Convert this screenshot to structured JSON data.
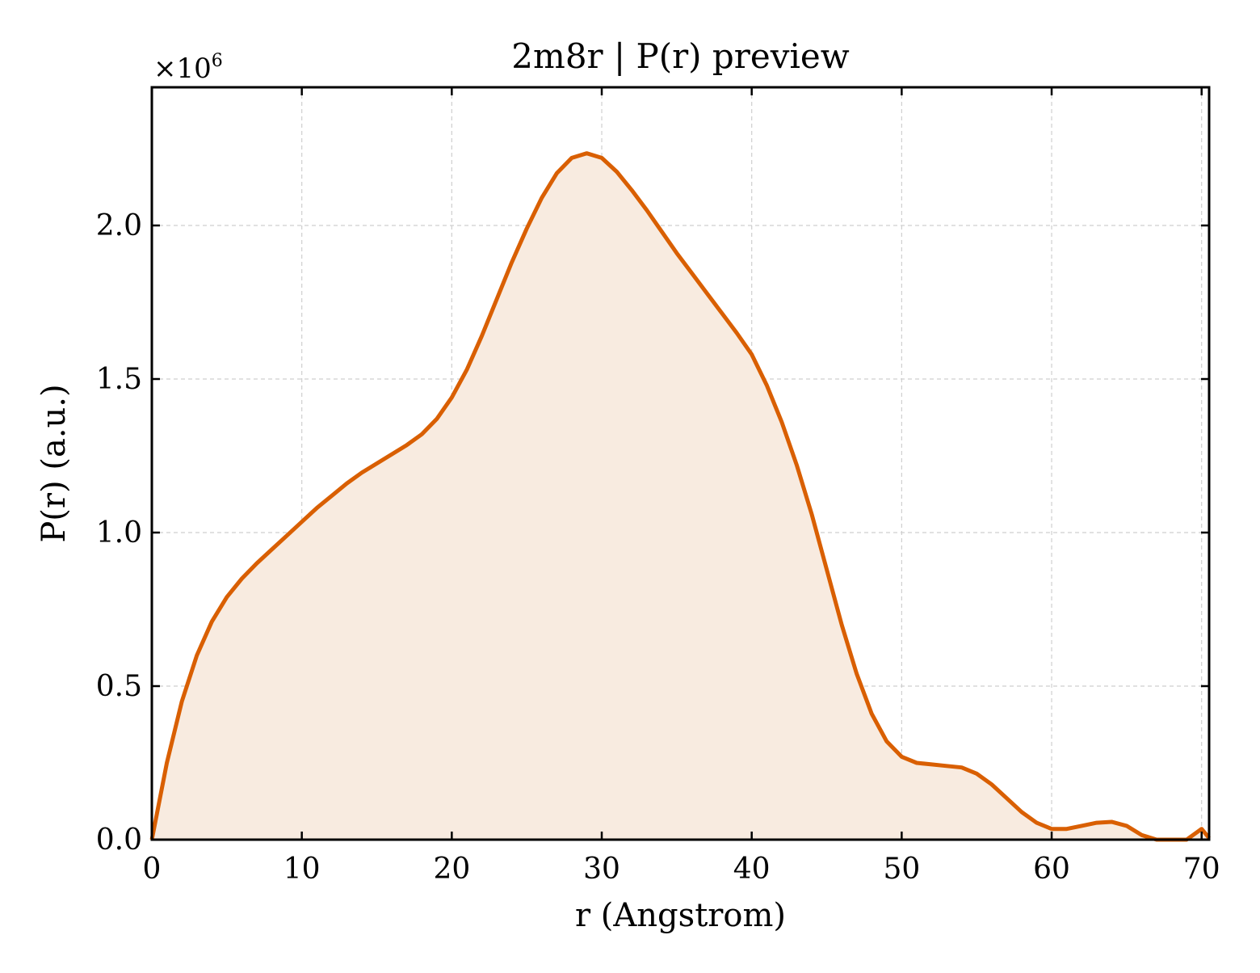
{
  "chart_data": {
    "type": "area",
    "title": "2m8r | P(r) preview",
    "xlabel": "r (Angstrom)",
    "ylabel": "P(r) (a.u.)",
    "y_multiplier_label": "×10",
    "y_multiplier_exponent": "6",
    "xlim": [
      0,
      70.5
    ],
    "ylim": [
      0,
      2.45
    ],
    "xticks": [
      0,
      10,
      20,
      30,
      40,
      50,
      60,
      70
    ],
    "xtick_labels": [
      "0",
      "10",
      "20",
      "30",
      "40",
      "50",
      "60",
      "70"
    ],
    "yticks": [
      0,
      0.5,
      1.0,
      1.5,
      2.0
    ],
    "ytick_labels": [
      "0.0",
      "0.5",
      "1.0",
      "1.5",
      "2.0"
    ],
    "grid": true,
    "line_color": "#d95f02",
    "fill_color": "#f8ebe0",
    "series": [
      {
        "x": [
          0,
          1,
          2,
          3,
          4,
          5,
          6,
          7,
          8,
          9,
          10,
          11,
          12,
          13,
          14,
          15,
          16,
          17,
          18,
          19,
          20,
          21,
          22,
          23,
          24,
          25,
          26,
          27,
          28,
          29,
          30,
          31,
          32,
          33,
          34,
          35,
          36,
          37,
          38,
          39,
          40,
          41,
          42,
          43,
          44,
          45,
          46,
          47,
          48,
          49,
          50,
          51,
          52,
          53,
          54,
          55,
          56,
          57,
          58,
          59,
          60,
          61,
          62,
          63,
          64,
          65,
          66,
          67,
          68,
          69,
          70,
          70.5
        ],
        "y": [
          0.0,
          0.25,
          0.45,
          0.6,
          0.71,
          0.79,
          0.85,
          0.9,
          0.945,
          0.99,
          1.035,
          1.08,
          1.12,
          1.16,
          1.195,
          1.225,
          1.255,
          1.285,
          1.32,
          1.37,
          1.44,
          1.53,
          1.64,
          1.76,
          1.88,
          1.99,
          2.09,
          2.17,
          2.22,
          2.235,
          2.22,
          2.175,
          2.115,
          2.05,
          1.98,
          1.91,
          1.845,
          1.78,
          1.715,
          1.65,
          1.58,
          1.48,
          1.36,
          1.22,
          1.06,
          0.88,
          0.7,
          0.54,
          0.41,
          0.32,
          0.27,
          0.25,
          0.245,
          0.24,
          0.235,
          0.215,
          0.18,
          0.135,
          0.09,
          0.055,
          0.035,
          0.035,
          0.045,
          0.055,
          0.058,
          0.045,
          0.015,
          0.0,
          0.0,
          0.0,
          0.035,
          0.005
        ]
      }
    ]
  }
}
